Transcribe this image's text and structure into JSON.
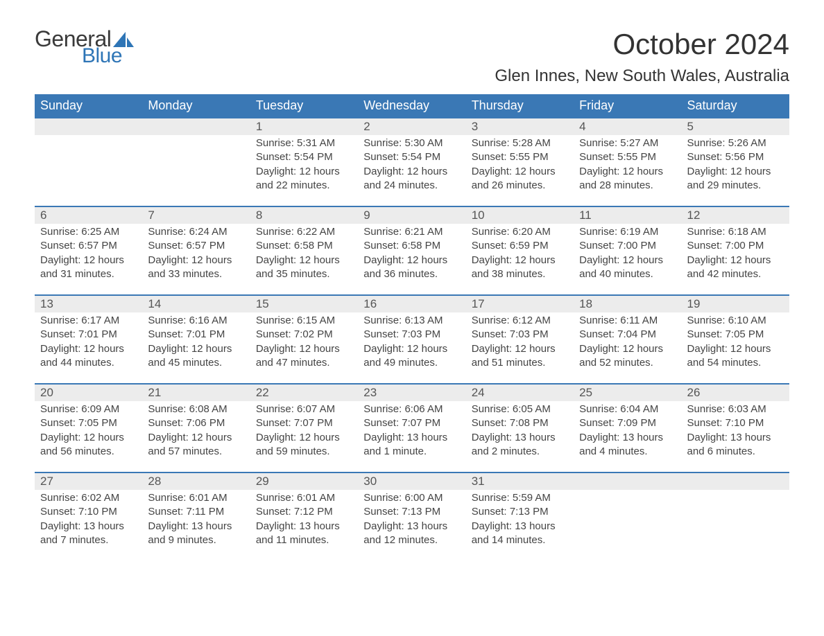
{
  "brand": {
    "general": "General",
    "blue": "Blue",
    "sail_color": "#2e75b6"
  },
  "title": "October 2024",
  "location": "Glen Innes, New South Wales, Australia",
  "colors": {
    "header_bg": "#3a78b5",
    "header_text": "#ffffff",
    "daynum_bg": "#ececec",
    "daynum_text": "#555555",
    "body_text": "#444444",
    "row_border": "#3a78b5",
    "page_bg": "#ffffff"
  },
  "typography": {
    "title_fontsize": 42,
    "location_fontsize": 24,
    "dow_fontsize": 18,
    "daynum_fontsize": 17,
    "body_fontsize": 15
  },
  "dow": [
    "Sunday",
    "Monday",
    "Tuesday",
    "Wednesday",
    "Thursday",
    "Friday",
    "Saturday"
  ],
  "weeks": [
    [
      null,
      null,
      {
        "n": "1",
        "sr": "Sunrise: 5:31 AM",
        "ss": "Sunset: 5:54 PM",
        "dl": "Daylight: 12 hours and 22 minutes."
      },
      {
        "n": "2",
        "sr": "Sunrise: 5:30 AM",
        "ss": "Sunset: 5:54 PM",
        "dl": "Daylight: 12 hours and 24 minutes."
      },
      {
        "n": "3",
        "sr": "Sunrise: 5:28 AM",
        "ss": "Sunset: 5:55 PM",
        "dl": "Daylight: 12 hours and 26 minutes."
      },
      {
        "n": "4",
        "sr": "Sunrise: 5:27 AM",
        "ss": "Sunset: 5:55 PM",
        "dl": "Daylight: 12 hours and 28 minutes."
      },
      {
        "n": "5",
        "sr": "Sunrise: 5:26 AM",
        "ss": "Sunset: 5:56 PM",
        "dl": "Daylight: 12 hours and 29 minutes."
      }
    ],
    [
      {
        "n": "6",
        "sr": "Sunrise: 6:25 AM",
        "ss": "Sunset: 6:57 PM",
        "dl": "Daylight: 12 hours and 31 minutes."
      },
      {
        "n": "7",
        "sr": "Sunrise: 6:24 AM",
        "ss": "Sunset: 6:57 PM",
        "dl": "Daylight: 12 hours and 33 minutes."
      },
      {
        "n": "8",
        "sr": "Sunrise: 6:22 AM",
        "ss": "Sunset: 6:58 PM",
        "dl": "Daylight: 12 hours and 35 minutes."
      },
      {
        "n": "9",
        "sr": "Sunrise: 6:21 AM",
        "ss": "Sunset: 6:58 PM",
        "dl": "Daylight: 12 hours and 36 minutes."
      },
      {
        "n": "10",
        "sr": "Sunrise: 6:20 AM",
        "ss": "Sunset: 6:59 PM",
        "dl": "Daylight: 12 hours and 38 minutes."
      },
      {
        "n": "11",
        "sr": "Sunrise: 6:19 AM",
        "ss": "Sunset: 7:00 PM",
        "dl": "Daylight: 12 hours and 40 minutes."
      },
      {
        "n": "12",
        "sr": "Sunrise: 6:18 AM",
        "ss": "Sunset: 7:00 PM",
        "dl": "Daylight: 12 hours and 42 minutes."
      }
    ],
    [
      {
        "n": "13",
        "sr": "Sunrise: 6:17 AM",
        "ss": "Sunset: 7:01 PM",
        "dl": "Daylight: 12 hours and 44 minutes."
      },
      {
        "n": "14",
        "sr": "Sunrise: 6:16 AM",
        "ss": "Sunset: 7:01 PM",
        "dl": "Daylight: 12 hours and 45 minutes."
      },
      {
        "n": "15",
        "sr": "Sunrise: 6:15 AM",
        "ss": "Sunset: 7:02 PM",
        "dl": "Daylight: 12 hours and 47 minutes."
      },
      {
        "n": "16",
        "sr": "Sunrise: 6:13 AM",
        "ss": "Sunset: 7:03 PM",
        "dl": "Daylight: 12 hours and 49 minutes."
      },
      {
        "n": "17",
        "sr": "Sunrise: 6:12 AM",
        "ss": "Sunset: 7:03 PM",
        "dl": "Daylight: 12 hours and 51 minutes."
      },
      {
        "n": "18",
        "sr": "Sunrise: 6:11 AM",
        "ss": "Sunset: 7:04 PM",
        "dl": "Daylight: 12 hours and 52 minutes."
      },
      {
        "n": "19",
        "sr": "Sunrise: 6:10 AM",
        "ss": "Sunset: 7:05 PM",
        "dl": "Daylight: 12 hours and 54 minutes."
      }
    ],
    [
      {
        "n": "20",
        "sr": "Sunrise: 6:09 AM",
        "ss": "Sunset: 7:05 PM",
        "dl": "Daylight: 12 hours and 56 minutes."
      },
      {
        "n": "21",
        "sr": "Sunrise: 6:08 AM",
        "ss": "Sunset: 7:06 PM",
        "dl": "Daylight: 12 hours and 57 minutes."
      },
      {
        "n": "22",
        "sr": "Sunrise: 6:07 AM",
        "ss": "Sunset: 7:07 PM",
        "dl": "Daylight: 12 hours and 59 minutes."
      },
      {
        "n": "23",
        "sr": "Sunrise: 6:06 AM",
        "ss": "Sunset: 7:07 PM",
        "dl": "Daylight: 13 hours and 1 minute."
      },
      {
        "n": "24",
        "sr": "Sunrise: 6:05 AM",
        "ss": "Sunset: 7:08 PM",
        "dl": "Daylight: 13 hours and 2 minutes."
      },
      {
        "n": "25",
        "sr": "Sunrise: 6:04 AM",
        "ss": "Sunset: 7:09 PM",
        "dl": "Daylight: 13 hours and 4 minutes."
      },
      {
        "n": "26",
        "sr": "Sunrise: 6:03 AM",
        "ss": "Sunset: 7:10 PM",
        "dl": "Daylight: 13 hours and 6 minutes."
      }
    ],
    [
      {
        "n": "27",
        "sr": "Sunrise: 6:02 AM",
        "ss": "Sunset: 7:10 PM",
        "dl": "Daylight: 13 hours and 7 minutes."
      },
      {
        "n": "28",
        "sr": "Sunrise: 6:01 AM",
        "ss": "Sunset: 7:11 PM",
        "dl": "Daylight: 13 hours and 9 minutes."
      },
      {
        "n": "29",
        "sr": "Sunrise: 6:01 AM",
        "ss": "Sunset: 7:12 PM",
        "dl": "Daylight: 13 hours and 11 minutes."
      },
      {
        "n": "30",
        "sr": "Sunrise: 6:00 AM",
        "ss": "Sunset: 7:13 PM",
        "dl": "Daylight: 13 hours and 12 minutes."
      },
      {
        "n": "31",
        "sr": "Sunrise: 5:59 AM",
        "ss": "Sunset: 7:13 PM",
        "dl": "Daylight: 13 hours and 14 minutes."
      },
      null,
      null
    ]
  ]
}
